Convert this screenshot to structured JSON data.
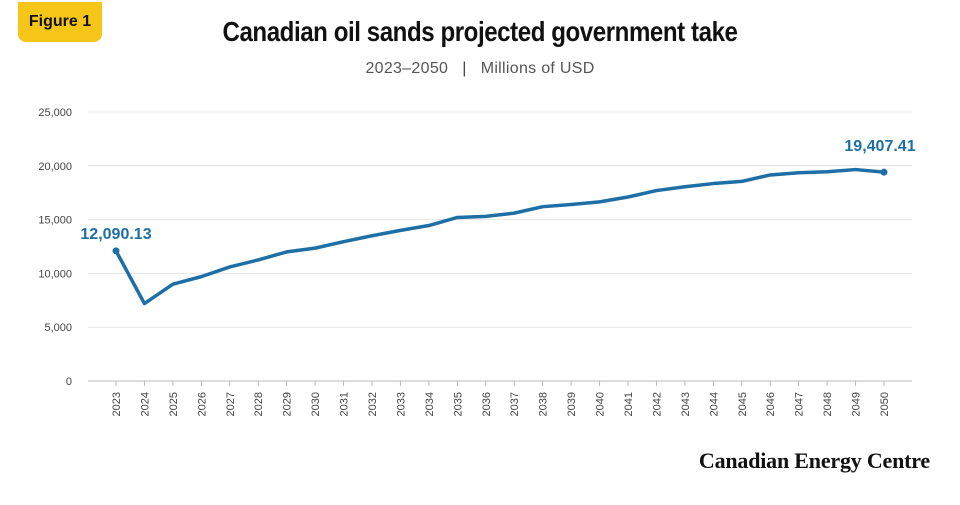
{
  "badge": "Figure 1",
  "brand": "Canadian Energy Centre",
  "chart_data": {
    "type": "line",
    "title": "Canadian oil sands projected government take",
    "subtitle_years": "2023–2050",
    "subtitle_units": "Millions of USD",
    "xlabel": "",
    "ylabel": "",
    "ylim": [
      0,
      25000
    ],
    "yticks": [
      0,
      5000,
      10000,
      15000,
      20000,
      25000
    ],
    "ytick_labels": [
      "0",
      "5,000",
      "10,000",
      "15,000",
      "20,000",
      "25,000"
    ],
    "grid": true,
    "legend": "none",
    "color": "#1d6fa5",
    "categories": [
      "2023",
      "2024",
      "2025",
      "2026",
      "2027",
      "2028",
      "2029",
      "2030",
      "2031",
      "2032",
      "2033",
      "2034",
      "2035",
      "2036",
      "2037",
      "2038",
      "2039",
      "2040",
      "2041",
      "2042",
      "2043",
      "2044",
      "2045",
      "2046",
      "2047",
      "2048",
      "2049",
      "2050"
    ],
    "values": [
      12090.13,
      7200,
      9000,
      9700,
      10600,
      11250,
      12000,
      12350,
      12950,
      13500,
      14000,
      14450,
      15200,
      15300,
      15600,
      16200,
      16400,
      16650,
      17100,
      17700,
      18050,
      18350,
      18550,
      19150,
      19350,
      19450,
      19650,
      19407.41
    ],
    "annotations": [
      {
        "index": 0,
        "label": "12,090.13"
      },
      {
        "index": 27,
        "label": "19,407.41"
      }
    ]
  }
}
